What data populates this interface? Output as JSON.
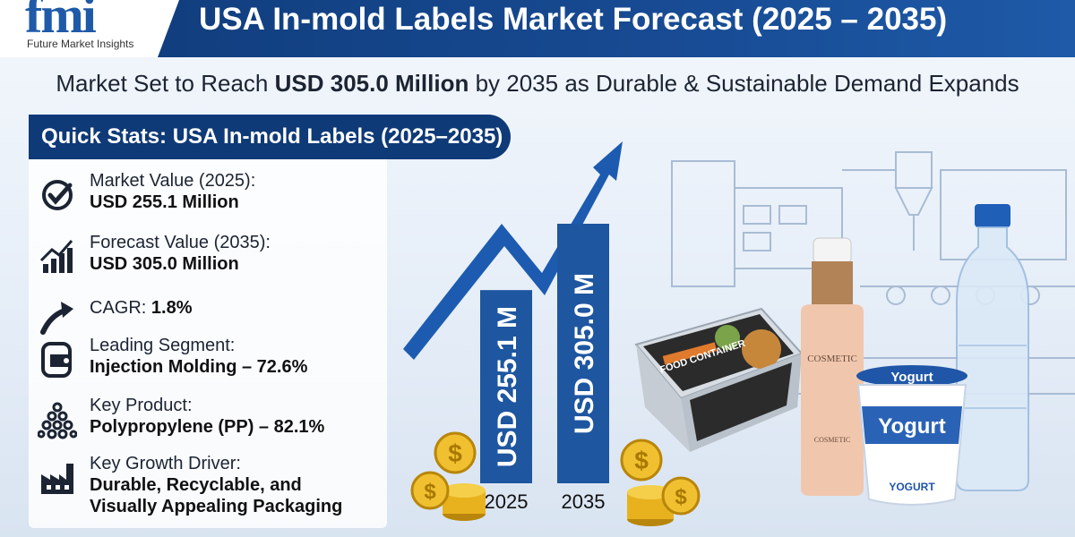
{
  "header": {
    "logo_mark": "fmi",
    "logo_text": "Future Market Insights",
    "title": "USA In-mold Labels Market Forecast (2025 – 2035)"
  },
  "subtitle": {
    "prefix": "Market Set to Reach ",
    "highlight": "USD 305.0 Million",
    "suffix": " by 2035 as Durable & Sustainable Demand Expands"
  },
  "stats": {
    "header": "Quick Stats: USA In-mold Labels (2025–2035)",
    "items": [
      {
        "icon": "check-circle-icon",
        "label": "Market Value (2025):",
        "value": "USD 255.1 Million"
      },
      {
        "icon": "bar-growth-icon",
        "label": "Forecast Value (2035):",
        "value": "USD 305.0 Million"
      },
      {
        "icon": "arrow-up-icon",
        "label": "CAGR: ",
        "value": "1.8%"
      },
      {
        "icon": "label-tag-icon",
        "label": "Leading Segment:",
        "value": "Injection Molding – 72.6%"
      },
      {
        "icon": "pellets-icon",
        "label": "Key Product:",
        "value": "Polypropylene (PP) – 82.1%"
      },
      {
        "icon": "factory-icon",
        "label": "Key Growth Driver:",
        "value": "Durable, Recyclable, and",
        "value2": "Visually Appealing Packaging"
      }
    ]
  },
  "products": {
    "food_box_text": "FOOD CONTAINER",
    "cosmetic_text": "COSMETIC",
    "cosmetic_sub": "COSMETIC",
    "yogurt_top": "Yogurt",
    "yogurt_main": "Yogurt",
    "yogurt_bottom": "YOGURT"
  },
  "colors": {
    "navy": "#0f3a78",
    "bar": "#1e56a0",
    "arrow": "#1d5bb0",
    "gold": "#e8b21e"
  },
  "chart_data": {
    "type": "bar",
    "categories": [
      "2025",
      "2035"
    ],
    "values": [
      255.1,
      305.0
    ],
    "bar_labels": [
      "USD 255.1 M",
      "USD 305.0 M"
    ],
    "unit": "USD Million",
    "trend_arrow": "upward"
  }
}
